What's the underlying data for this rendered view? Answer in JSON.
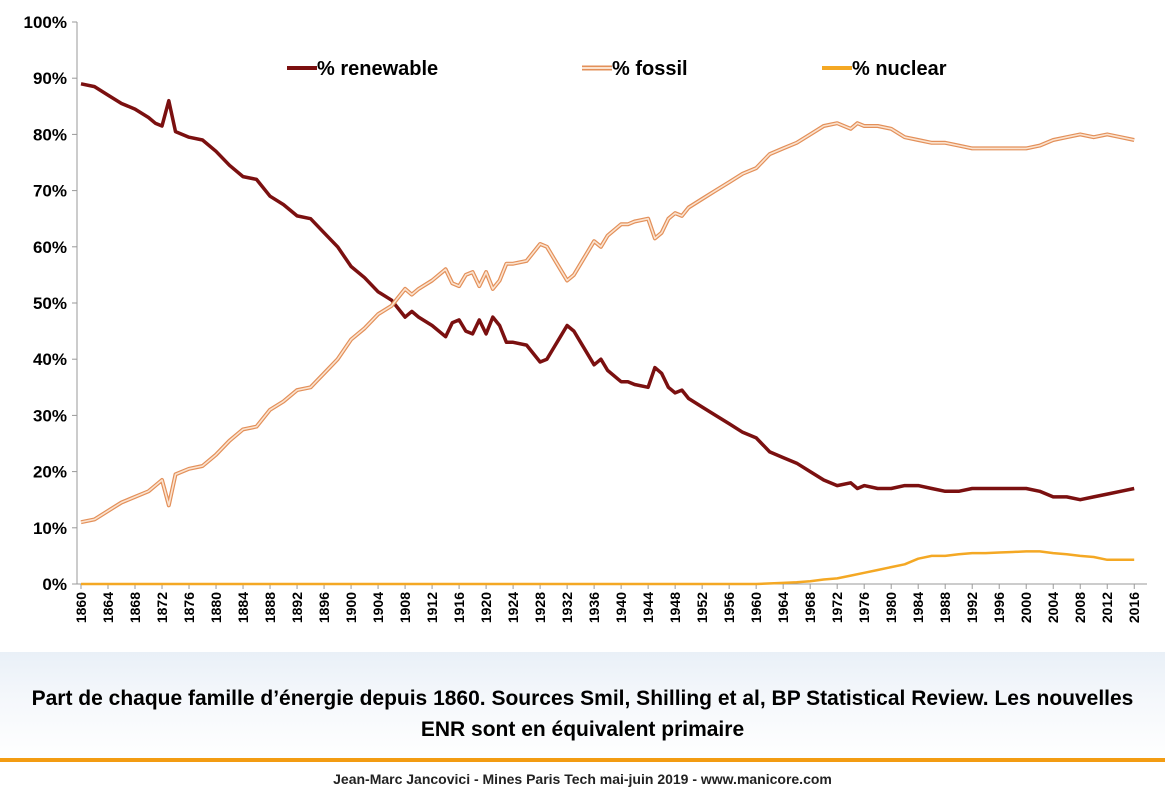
{
  "caption": "Part de chaque famille d’énergie depuis 1860. Sources Smil, Shilling et al, BP Statistical Review. Les nouvelles ENR sont en équivalent primaire",
  "footer": "Jean-Marc Jancovici - Mines Paris Tech mai-juin 2019 - www.manicore.com",
  "colors": {
    "renewable": "#7b1010",
    "fossil": "#f4b183",
    "nuclear": "#f4a824",
    "accent": "#f39c12"
  },
  "chart_data": {
    "type": "line",
    "title": "",
    "xlabel": "",
    "ylabel": "",
    "ylim": [
      0,
      100
    ],
    "xlim": [
      1860,
      2017
    ],
    "grid": false,
    "legend_position": "top",
    "y_ticks": [
      "0%",
      "10%",
      "20%",
      "30%",
      "40%",
      "50%",
      "60%",
      "70%",
      "80%",
      "90%",
      "100%"
    ],
    "x_ticks": [
      "1860",
      "1864",
      "1868",
      "1872",
      "1876",
      "1880",
      "1884",
      "1888",
      "1892",
      "1896",
      "1900",
      "1904",
      "1908",
      "1912",
      "1916",
      "1920",
      "1924",
      "1928",
      "1932",
      "1936",
      "1940",
      "1944",
      "1948",
      "1952",
      "1956",
      "1960",
      "1964",
      "1968",
      "1972",
      "1976",
      "1980",
      "1984",
      "1988",
      "1992",
      "1996",
      "2000",
      "2004",
      "2008",
      "2012",
      "2016"
    ],
    "series": [
      {
        "name": "% renewable",
        "points": [
          [
            1860,
            89
          ],
          [
            1862,
            88.5
          ],
          [
            1864,
            87
          ],
          [
            1866,
            85.5
          ],
          [
            1868,
            84.5
          ],
          [
            1870,
            83
          ],
          [
            1871,
            82
          ],
          [
            1872,
            81.5
          ],
          [
            1873,
            86
          ],
          [
            1874,
            80.5
          ],
          [
            1876,
            79.5
          ],
          [
            1878,
            79
          ],
          [
            1880,
            77
          ],
          [
            1882,
            74.5
          ],
          [
            1884,
            72.5
          ],
          [
            1886,
            72
          ],
          [
            1888,
            69
          ],
          [
            1890,
            67.5
          ],
          [
            1892,
            65.5
          ],
          [
            1894,
            65
          ],
          [
            1896,
            62.5
          ],
          [
            1898,
            60
          ],
          [
            1900,
            56.5
          ],
          [
            1902,
            54.5
          ],
          [
            1904,
            52
          ],
          [
            1906,
            50.5
          ],
          [
            1907,
            49
          ],
          [
            1908,
            47.5
          ],
          [
            1909,
            48.5
          ],
          [
            1910,
            47.5
          ],
          [
            1912,
            46
          ],
          [
            1914,
            44
          ],
          [
            1915,
            46.5
          ],
          [
            1916,
            47
          ],
          [
            1917,
            45
          ],
          [
            1918,
            44.5
          ],
          [
            1919,
            47
          ],
          [
            1920,
            44.5
          ],
          [
            1921,
            47.5
          ],
          [
            1922,
            46
          ],
          [
            1923,
            43
          ],
          [
            1924,
            43
          ],
          [
            1926,
            42.5
          ],
          [
            1928,
            39.5
          ],
          [
            1929,
            40
          ],
          [
            1930,
            42
          ],
          [
            1931,
            44
          ],
          [
            1932,
            46
          ],
          [
            1933,
            45
          ],
          [
            1934,
            43
          ],
          [
            1936,
            39
          ],
          [
            1937,
            40
          ],
          [
            1938,
            38
          ],
          [
            1940,
            36
          ],
          [
            1941,
            36
          ],
          [
            1942,
            35.5
          ],
          [
            1944,
            35
          ],
          [
            1945,
            38.5
          ],
          [
            1946,
            37.5
          ],
          [
            1947,
            35
          ],
          [
            1948,
            34
          ],
          [
            1949,
            34.5
          ],
          [
            1950,
            33
          ],
          [
            1952,
            31.5
          ],
          [
            1954,
            30
          ],
          [
            1956,
            28.5
          ],
          [
            1958,
            27
          ],
          [
            1960,
            26
          ],
          [
            1962,
            23.5
          ],
          [
            1964,
            22.5
          ],
          [
            1966,
            21.5
          ],
          [
            1968,
            20
          ],
          [
            1970,
            18.5
          ],
          [
            1972,
            17.5
          ],
          [
            1974,
            18
          ],
          [
            1975,
            17
          ],
          [
            1976,
            17.5
          ],
          [
            1978,
            17
          ],
          [
            1980,
            17
          ],
          [
            1982,
            17.5
          ],
          [
            1984,
            17.5
          ],
          [
            1986,
            17
          ],
          [
            1988,
            16.5
          ],
          [
            1990,
            16.5
          ],
          [
            1992,
            17
          ],
          [
            1994,
            17
          ],
          [
            1996,
            17
          ],
          [
            1998,
            17
          ],
          [
            2000,
            17
          ],
          [
            2002,
            16.5
          ],
          [
            2004,
            15.5
          ],
          [
            2006,
            15.5
          ],
          [
            2008,
            15
          ],
          [
            2010,
            15.5
          ],
          [
            2012,
            16
          ],
          [
            2014,
            16.5
          ],
          [
            2016,
            17
          ]
        ]
      },
      {
        "name": "% fossil",
        "points": [
          [
            1860,
            11
          ],
          [
            1862,
            11.5
          ],
          [
            1864,
            13
          ],
          [
            1866,
            14.5
          ],
          [
            1868,
            15.5
          ],
          [
            1870,
            16.5
          ],
          [
            1871,
            17.5
          ],
          [
            1872,
            18.5
          ],
          [
            1873,
            14
          ],
          [
            1874,
            19.5
          ],
          [
            1876,
            20.5
          ],
          [
            1878,
            21
          ],
          [
            1880,
            23
          ],
          [
            1882,
            25.5
          ],
          [
            1884,
            27.5
          ],
          [
            1886,
            28
          ],
          [
            1888,
            31
          ],
          [
            1890,
            32.5
          ],
          [
            1892,
            34.5
          ],
          [
            1894,
            35
          ],
          [
            1896,
            37.5
          ],
          [
            1898,
            40
          ],
          [
            1900,
            43.5
          ],
          [
            1902,
            45.5
          ],
          [
            1904,
            48
          ],
          [
            1906,
            49.5
          ],
          [
            1907,
            51
          ],
          [
            1908,
            52.5
          ],
          [
            1909,
            51.5
          ],
          [
            1910,
            52.5
          ],
          [
            1912,
            54
          ],
          [
            1914,
            56
          ],
          [
            1915,
            53.5
          ],
          [
            1916,
            53
          ],
          [
            1917,
            55
          ],
          [
            1918,
            55.5
          ],
          [
            1919,
            53
          ],
          [
            1920,
            55.5
          ],
          [
            1921,
            52.5
          ],
          [
            1922,
            54
          ],
          [
            1923,
            57
          ],
          [
            1924,
            57
          ],
          [
            1926,
            57.5
          ],
          [
            1928,
            60.5
          ],
          [
            1929,
            60
          ],
          [
            1930,
            58
          ],
          [
            1931,
            56
          ],
          [
            1932,
            54
          ],
          [
            1933,
            55
          ],
          [
            1934,
            57
          ],
          [
            1936,
            61
          ],
          [
            1937,
            60
          ],
          [
            1938,
            62
          ],
          [
            1940,
            64
          ],
          [
            1941,
            64
          ],
          [
            1942,
            64.5
          ],
          [
            1944,
            65
          ],
          [
            1945,
            61.5
          ],
          [
            1946,
            62.5
          ],
          [
            1947,
            65
          ],
          [
            1948,
            66
          ],
          [
            1949,
            65.5
          ],
          [
            1950,
            67
          ],
          [
            1952,
            68.5
          ],
          [
            1954,
            70
          ],
          [
            1956,
            71.5
          ],
          [
            1958,
            73
          ],
          [
            1960,
            74
          ],
          [
            1962,
            76.5
          ],
          [
            1964,
            77.5
          ],
          [
            1966,
            78.5
          ],
          [
            1968,
            80
          ],
          [
            1970,
            81.5
          ],
          [
            1972,
            82
          ],
          [
            1974,
            81
          ],
          [
            1975,
            82
          ],
          [
            1976,
            81.5
          ],
          [
            1978,
            81.5
          ],
          [
            1980,
            81
          ],
          [
            1982,
            79.5
          ],
          [
            1984,
            79
          ],
          [
            1986,
            78.5
          ],
          [
            1988,
            78.5
          ],
          [
            1990,
            78
          ],
          [
            1992,
            77.5
          ],
          [
            1994,
            77.5
          ],
          [
            1996,
            77.5
          ],
          [
            1998,
            77.5
          ],
          [
            2000,
            77.5
          ],
          [
            2002,
            78
          ],
          [
            2004,
            79
          ],
          [
            2006,
            79.5
          ],
          [
            2008,
            80
          ],
          [
            2010,
            79.5
          ],
          [
            2012,
            80
          ],
          [
            2014,
            79.5
          ],
          [
            2016,
            79
          ]
        ]
      },
      {
        "name": "% nuclear",
        "points": [
          [
            1860,
            0
          ],
          [
            1956,
            0
          ],
          [
            1960,
            0
          ],
          [
            1964,
            0.2
          ],
          [
            1966,
            0.3
          ],
          [
            1968,
            0.5
          ],
          [
            1970,
            0.8
          ],
          [
            1972,
            1
          ],
          [
            1974,
            1.5
          ],
          [
            1976,
            2
          ],
          [
            1978,
            2.5
          ],
          [
            1980,
            3
          ],
          [
            1982,
            3.5
          ],
          [
            1984,
            4.5
          ],
          [
            1986,
            5
          ],
          [
            1988,
            5
          ],
          [
            1990,
            5.3
          ],
          [
            1992,
            5.5
          ],
          [
            1994,
            5.5
          ],
          [
            1996,
            5.6
          ],
          [
            1998,
            5.7
          ],
          [
            2000,
            5.8
          ],
          [
            2002,
            5.8
          ],
          [
            2004,
            5.5
          ],
          [
            2006,
            5.3
          ],
          [
            2008,
            5
          ],
          [
            2010,
            4.8
          ],
          [
            2012,
            4.3
          ],
          [
            2014,
            4.3
          ],
          [
            2016,
            4.3
          ]
        ]
      }
    ]
  }
}
